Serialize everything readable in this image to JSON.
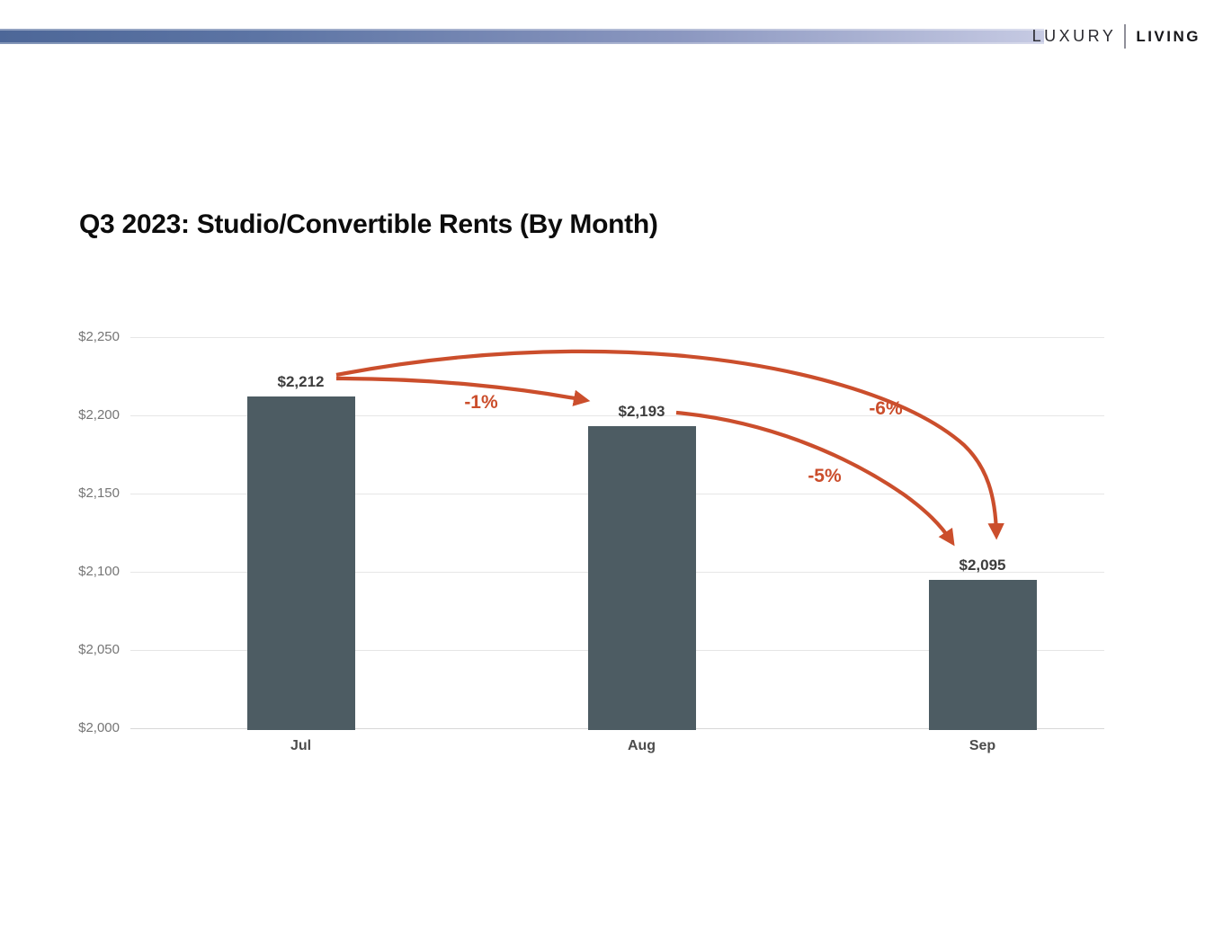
{
  "header": {
    "brand_primary": "LUXURY",
    "brand_secondary": "LIVING"
  },
  "title": "Q3 2023: Studio/Convertible Rents (By Month)",
  "chart_data": {
    "type": "bar",
    "title": "Q3 2023: Studio/Convertible Rents (By Month)",
    "categories": [
      "Jul",
      "Aug",
      "Sep"
    ],
    "values": [
      2212,
      2193,
      2095
    ],
    "value_labels": [
      "$2,212",
      "$2,193",
      "$2,095"
    ],
    "xlabel": "",
    "ylabel": "",
    "ylim": [
      2000,
      2250
    ],
    "ytick_step": 50,
    "ytick_labels": [
      "$2,250",
      "$2,200",
      "$2,150",
      "$2,100",
      "$2,050",
      "$2,000"
    ],
    "grid": true,
    "legend": "none",
    "annotations": [
      {
        "label": "-1%",
        "from": "Jul",
        "to": "Aug"
      },
      {
        "label": "-5%",
        "from": "Aug",
        "to": "Sep"
      },
      {
        "label": "-6%",
        "from": "Jul",
        "to": "Sep"
      }
    ],
    "colors": {
      "bar": "#4d5c63",
      "annotation": "#cb4e2c",
      "grid": "#e6e6e6",
      "axis_label": "#757575",
      "value_label": "#3d3d3d",
      "header_gradient_start": "#4d6798",
      "header_gradient_end": "#c6cae3"
    }
  }
}
